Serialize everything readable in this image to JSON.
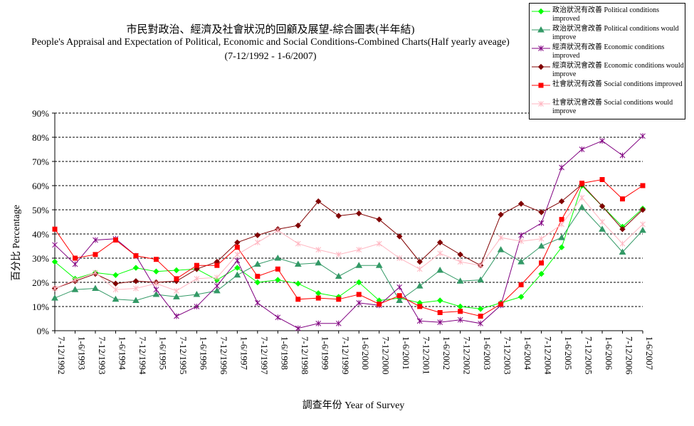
{
  "chart_data": {
    "type": "line",
    "title": "市民對政治、經濟及社會狀況的回顧及展望-綜合圖表(半年結)",
    "subtitle": "People's Appraisal and Expectation of Political, Economic and Social Conditions-Combined Charts(Half yearly aveage)",
    "subtitle2": "(7-12/1992 - 1-6/2007)",
    "xlabel": "調查年份 Year of Survey",
    "ylabel": "百分比 Percentage",
    "ylim": [
      0,
      90
    ],
    "yticks": [
      "0%",
      "10%",
      "20%",
      "30%",
      "40%",
      "50%",
      "60%",
      "70%",
      "80%",
      "90%"
    ],
    "grid": true,
    "legend_position": "top-right",
    "categories": [
      "7-12/1992",
      "1-6/1993",
      "7-12/1993",
      "1-6/1994",
      "7-12/1994",
      "1-6/1995",
      "7-12/1995",
      "1-6/1996",
      "7-12/1996",
      "1-6/1997",
      "7-12/1997",
      "1-6/1998",
      "7-12/1998",
      "1-6/1999",
      "7-12/1999",
      "1-6/2000",
      "7-12/2000",
      "1-6/2001",
      "7-12/2001",
      "1-6/2002",
      "7-12/2002",
      "1-6/2003",
      "7-12/2003",
      "1-6/2004",
      "7-12/2004",
      "1-6/2005",
      "7-12/2005",
      "1-6/2006",
      "7-12/2006",
      "1-6/2007"
    ],
    "series": [
      {
        "name": "政治狀況有改善 Political conditions improved",
        "color": "#00ff00",
        "marker": "diamond",
        "values": [
          28.5,
          21.5,
          24,
          23,
          26,
          24.5,
          25,
          25.5,
          21,
          26,
          20,
          21,
          19.5,
          15.5,
          14,
          20,
          12.5,
          13.5,
          11.5,
          12.5,
          10,
          9,
          11.5,
          14,
          23.5,
          34.5,
          60,
          51.5,
          43,
          50.5
        ]
      },
      {
        "name": "政治狀況會改善 Political conditions would improve",
        "color": "#339966",
        "marker": "triangle",
        "values": [
          13.5,
          17,
          17.5,
          13,
          12.5,
          15,
          14,
          15,
          16.5,
          23,
          27.5,
          30,
          27.5,
          28,
          22.5,
          27,
          27,
          12.5,
          18.5,
          25,
          20.5,
          21,
          33.5,
          28.5,
          35,
          38.5,
          51,
          42,
          32.5,
          41.5
        ]
      },
      {
        "name": "經濟狀況有改善 Economic conditions improved",
        "color": "#800080",
        "marker": "star",
        "values": [
          35.5,
          27.5,
          37.5,
          38,
          31,
          17,
          6,
          10,
          18.5,
          29,
          11.5,
          5.5,
          1,
          3,
          3,
          11.5,
          10.5,
          18,
          4,
          3.5,
          4.5,
          3,
          10.5,
          39.5,
          44.5,
          67.5,
          75,
          78.5,
          72.5,
          80.5
        ]
      },
      {
        "name": "經濟狀況會改善 Economic conditions would improve",
        "color": "#800000",
        "marker": "diamond",
        "values": [
          17.5,
          20.5,
          23.5,
          19.5,
          20.5,
          20,
          20.5,
          25.5,
          28.5,
          36.5,
          39.5,
          42,
          43.5,
          53.5,
          47.5,
          48.5,
          46,
          39,
          28.5,
          36.5,
          31.5,
          27,
          48,
          52.5,
          49,
          53.5,
          60.5,
          51.5,
          42,
          50
        ]
      },
      {
        "name": "社會狀況有改善 Social conditions improved",
        "color": "#ff0000",
        "marker": "square",
        "values": [
          42,
          30,
          31.5,
          37.5,
          31,
          29.5,
          21.5,
          27,
          27,
          34.5,
          22.5,
          25.5,
          13,
          13.5,
          13,
          15,
          11,
          14.5,
          10,
          7.5,
          8,
          6,
          11,
          19,
          28,
          46,
          61,
          62.5,
          54.5,
          60
        ]
      },
      {
        "name": "社會狀況會改善 Social conditions would improve",
        "color": "#ffb6c1",
        "marker": "star",
        "values": [
          17.5,
          21,
          24,
          17,
          17.5,
          19.5,
          16.5,
          21.5,
          22,
          31.5,
          36.5,
          41.5,
          36,
          33.5,
          31.5,
          33.5,
          36,
          30,
          25.5,
          32,
          28.5,
          27,
          38.5,
          37,
          38,
          44,
          55,
          45,
          36,
          44
        ]
      }
    ]
  },
  "legend": [
    {
      "zh": "政治狀況有改善",
      "en": "Political conditions improved"
    },
    {
      "zh": "政治狀況會改善",
      "en": "Political conditions would improve"
    },
    {
      "zh": "經濟狀況有改善",
      "en": "Economic conditions improved"
    },
    {
      "zh": "經濟狀況會改善",
      "en": "Economic conditions would improve"
    },
    {
      "zh": "社會狀況有改善",
      "en": "Social conditions improved"
    },
    {
      "zh": "社會狀況會改善",
      "en": "Social conditions would improve"
    }
  ]
}
